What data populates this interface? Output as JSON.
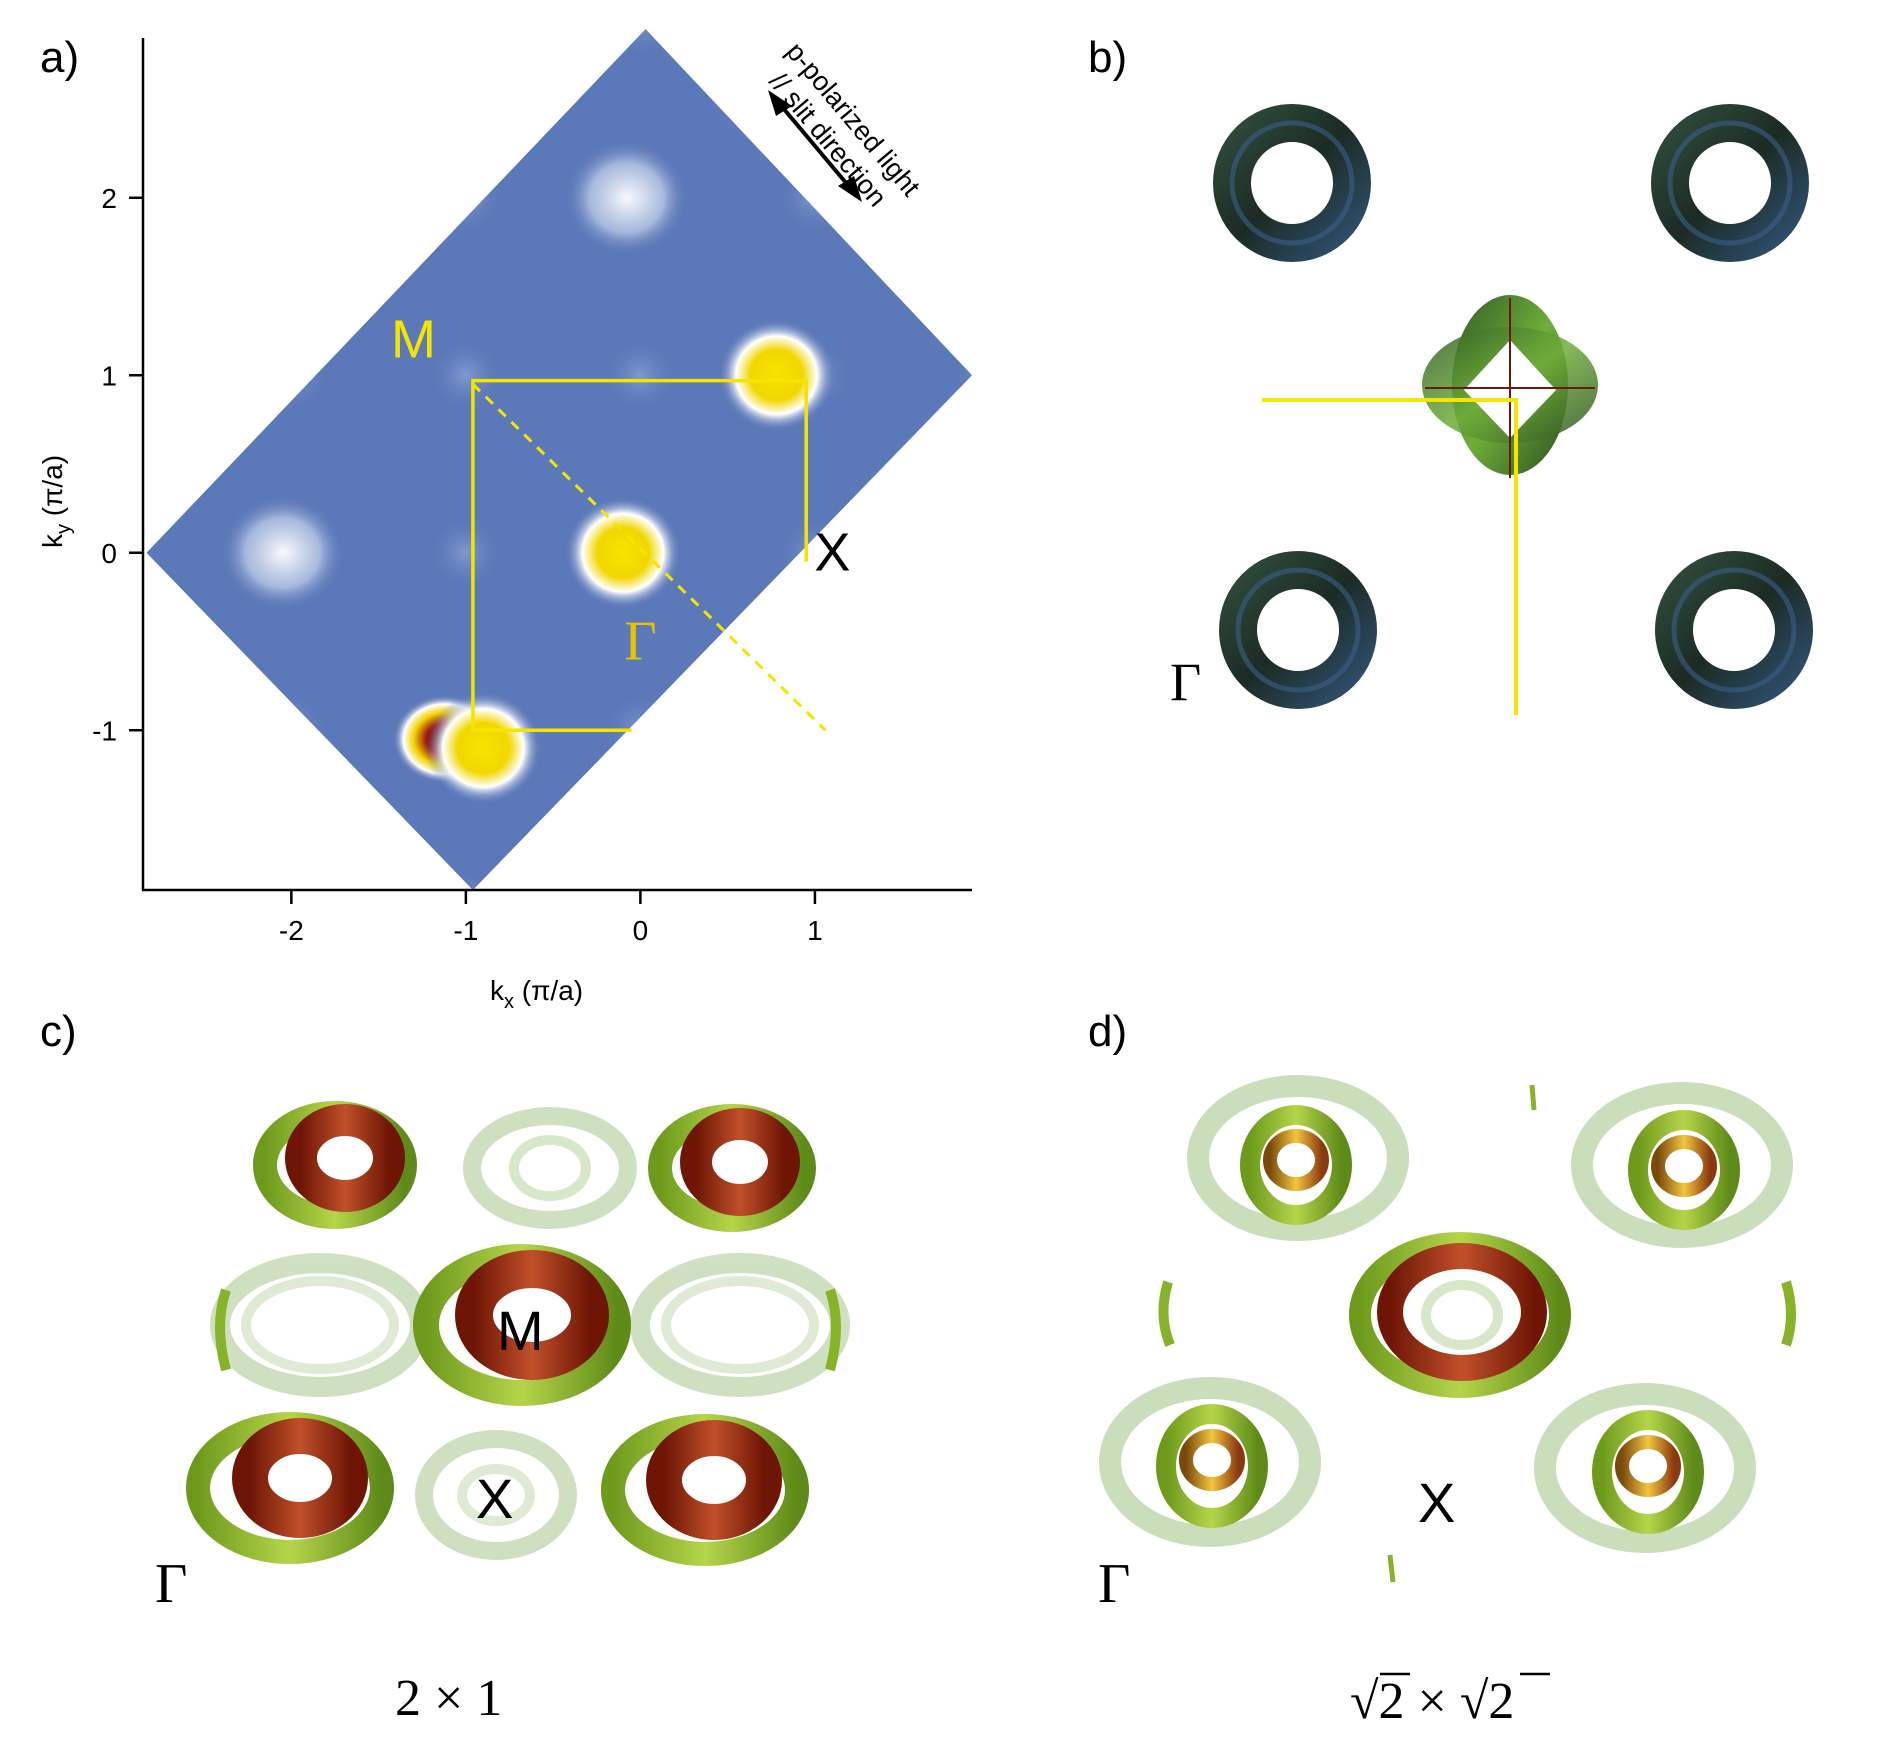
{
  "panels": {
    "a": {
      "label": "a)",
      "chart_data": {
        "type": "heatmap",
        "xlabel_main": "k",
        "xlabel_sub": "x",
        "xlabel_unit": " (π/a)",
        "ylabel_main": "k",
        "ylabel_sub": "y",
        "ylabel_unit": " (π/a)",
        "xlim": [
          -2.85,
          1.9
        ],
        "ylim": [
          -1.9,
          2.9
        ],
        "x_ticks": [
          -2,
          -1,
          0,
          1
        ],
        "x_tick_labels": [
          "-2",
          "-1",
          "0",
          "1"
        ],
        "y_ticks": [
          -1,
          0,
          1,
          2
        ],
        "y_tick_labels": [
          "-1",
          "0",
          "1",
          "2"
        ],
        "grid": false,
        "map_region_corners": [
          [
            0.03,
            2.95
          ],
          [
            1.9,
            1.0
          ],
          [
            -0.96,
            -1.9
          ],
          [
            -2.83,
            0.0
          ]
        ],
        "hotspots": [
          {
            "x": -0.1,
            "y": 0.0,
            "level": "yellow"
          },
          {
            "x": -1.12,
            "y": -1.05,
            "level": "dark-red"
          },
          {
            "x": -0.9,
            "y": -1.1,
            "level": "yellow"
          },
          {
            "x": 0.78,
            "y": 1.0,
            "level": "yellow"
          },
          {
            "x": -0.08,
            "y": 2.0,
            "level": "white"
          },
          {
            "x": -2.05,
            "y": 0.0,
            "level": "white"
          }
        ],
        "bz_path": [
          [
            -0.96,
            -1.0
          ],
          [
            -0.96,
            0.97
          ],
          [
            0.95,
            0.97
          ],
          [
            0.95,
            -0.05
          ]
        ],
        "bz_bottom": [
          [
            -0.96,
            -1.0
          ],
          [
            -0.05,
            -1.0
          ]
        ],
        "diagonal": [
          [
            -0.96,
            0.95
          ],
          [
            1.06,
            -1.0
          ]
        ],
        "point_labels": [
          {
            "text": "M",
            "x": -1.3,
            "y": 1.1,
            "color": "#f5e400"
          },
          {
            "text": "Γ",
            "x": 0.0,
            "y": -0.6,
            "color": "#e8c200"
          },
          {
            "text": "X",
            "x": 1.1,
            "y": -0.1,
            "color": "#000000"
          }
        ],
        "annotation_line1": "p-polarized light",
        "annotation_line2": "// slit direction"
      },
      "colors": {
        "background": "#5b78b8",
        "bz": "#f5e400"
      }
    },
    "b": {
      "label": "b)",
      "gamma_label": "Γ",
      "colors": {
        "ring": "#223428",
        "ring_blue": "#3b5f8a",
        "center": "#4e8a2e",
        "line": "#f5e400"
      }
    },
    "c": {
      "label": "c)",
      "m_label": "M",
      "x_label": "X",
      "gamma_label": "Γ",
      "caption": "2 × 1",
      "colors": {
        "green": "#86b32a",
        "red": "#9a2510",
        "faded": "#c8dcb4"
      }
    },
    "d": {
      "label": "d)",
      "x_label": "X",
      "gamma_label": "Γ",
      "caption_sqrt_a": "√",
      "caption_num_a": "2",
      "caption_times": " × ",
      "caption_sqrt_b": "√",
      "caption_num_b": "2",
      "colors": {
        "green": "#86b32a",
        "gold": "#d9a21a",
        "red": "#b3401c"
      }
    }
  }
}
